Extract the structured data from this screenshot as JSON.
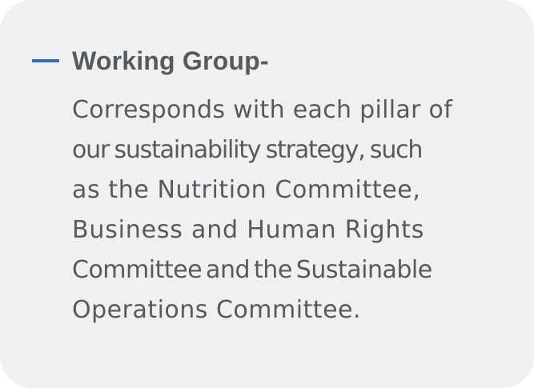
{
  "section": {
    "heading": "Working Group-",
    "description_lines": [
      "Corresponds with each pillar of",
      "our sustainability strategy, such",
      "as the Nutrition Committee,",
      "Business and Human Rights",
      "Committee and the Sustainable",
      "Operations Committee."
    ]
  },
  "colors": {
    "accent": "#2f6db5",
    "text": "#58595b",
    "card_background": "#f0f0f0"
  }
}
